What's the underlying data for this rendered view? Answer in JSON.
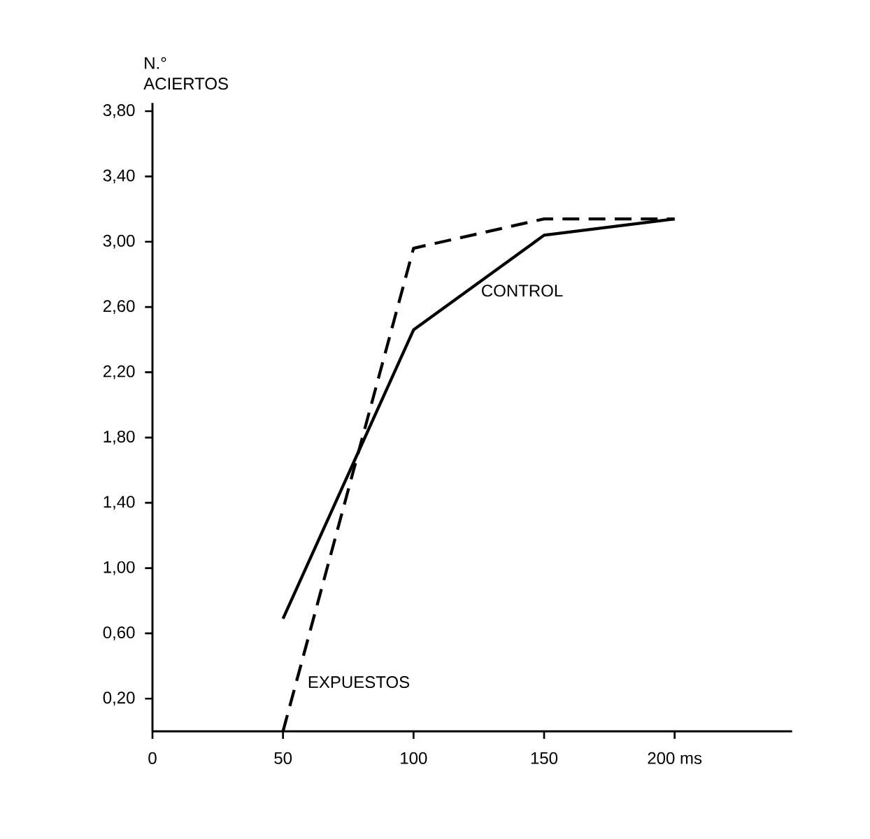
{
  "chart_data": {
    "type": "line",
    "ylabel": "N.° ACIERTOS",
    "x": [
      50,
      100,
      150,
      200
    ],
    "series": [
      {
        "name": "CONTROL",
        "color": "#000000",
        "line_style": "solid",
        "values": [
          0.69,
          2.46,
          3.04,
          3.14
        ]
      },
      {
        "name": "EXPUESTOS",
        "color": "#000000",
        "line_style": "dashed",
        "values": [
          0,
          2.96,
          3.14,
          3.14
        ]
      }
    ],
    "xlim": [
      0,
      245
    ],
    "ylim": [
      0,
      3.85
    ],
    "xticks": [
      0,
      50,
      100,
      150,
      {
        "value": 200,
        "label": "200 ms"
      }
    ],
    "yticks": [
      {
        "value": 0.2,
        "label": "0,20"
      },
      {
        "value": 0.6,
        "label": "0,60"
      },
      {
        "value": 1.0,
        "label": "1,00"
      },
      {
        "value": 1.4,
        "label": "1,40"
      },
      {
        "value": 1.8,
        "label": "1,80"
      },
      {
        "value": 2.2,
        "label": "2,20"
      },
      {
        "value": 2.6,
        "label": "2,60"
      },
      {
        "value": 3.0,
        "label": "3,00"
      },
      {
        "value": 3.4,
        "label": "3,40"
      },
      {
        "value": 3.8,
        "label": "3,80"
      }
    ],
    "grid": false,
    "legend": false,
    "marker": "none"
  }
}
